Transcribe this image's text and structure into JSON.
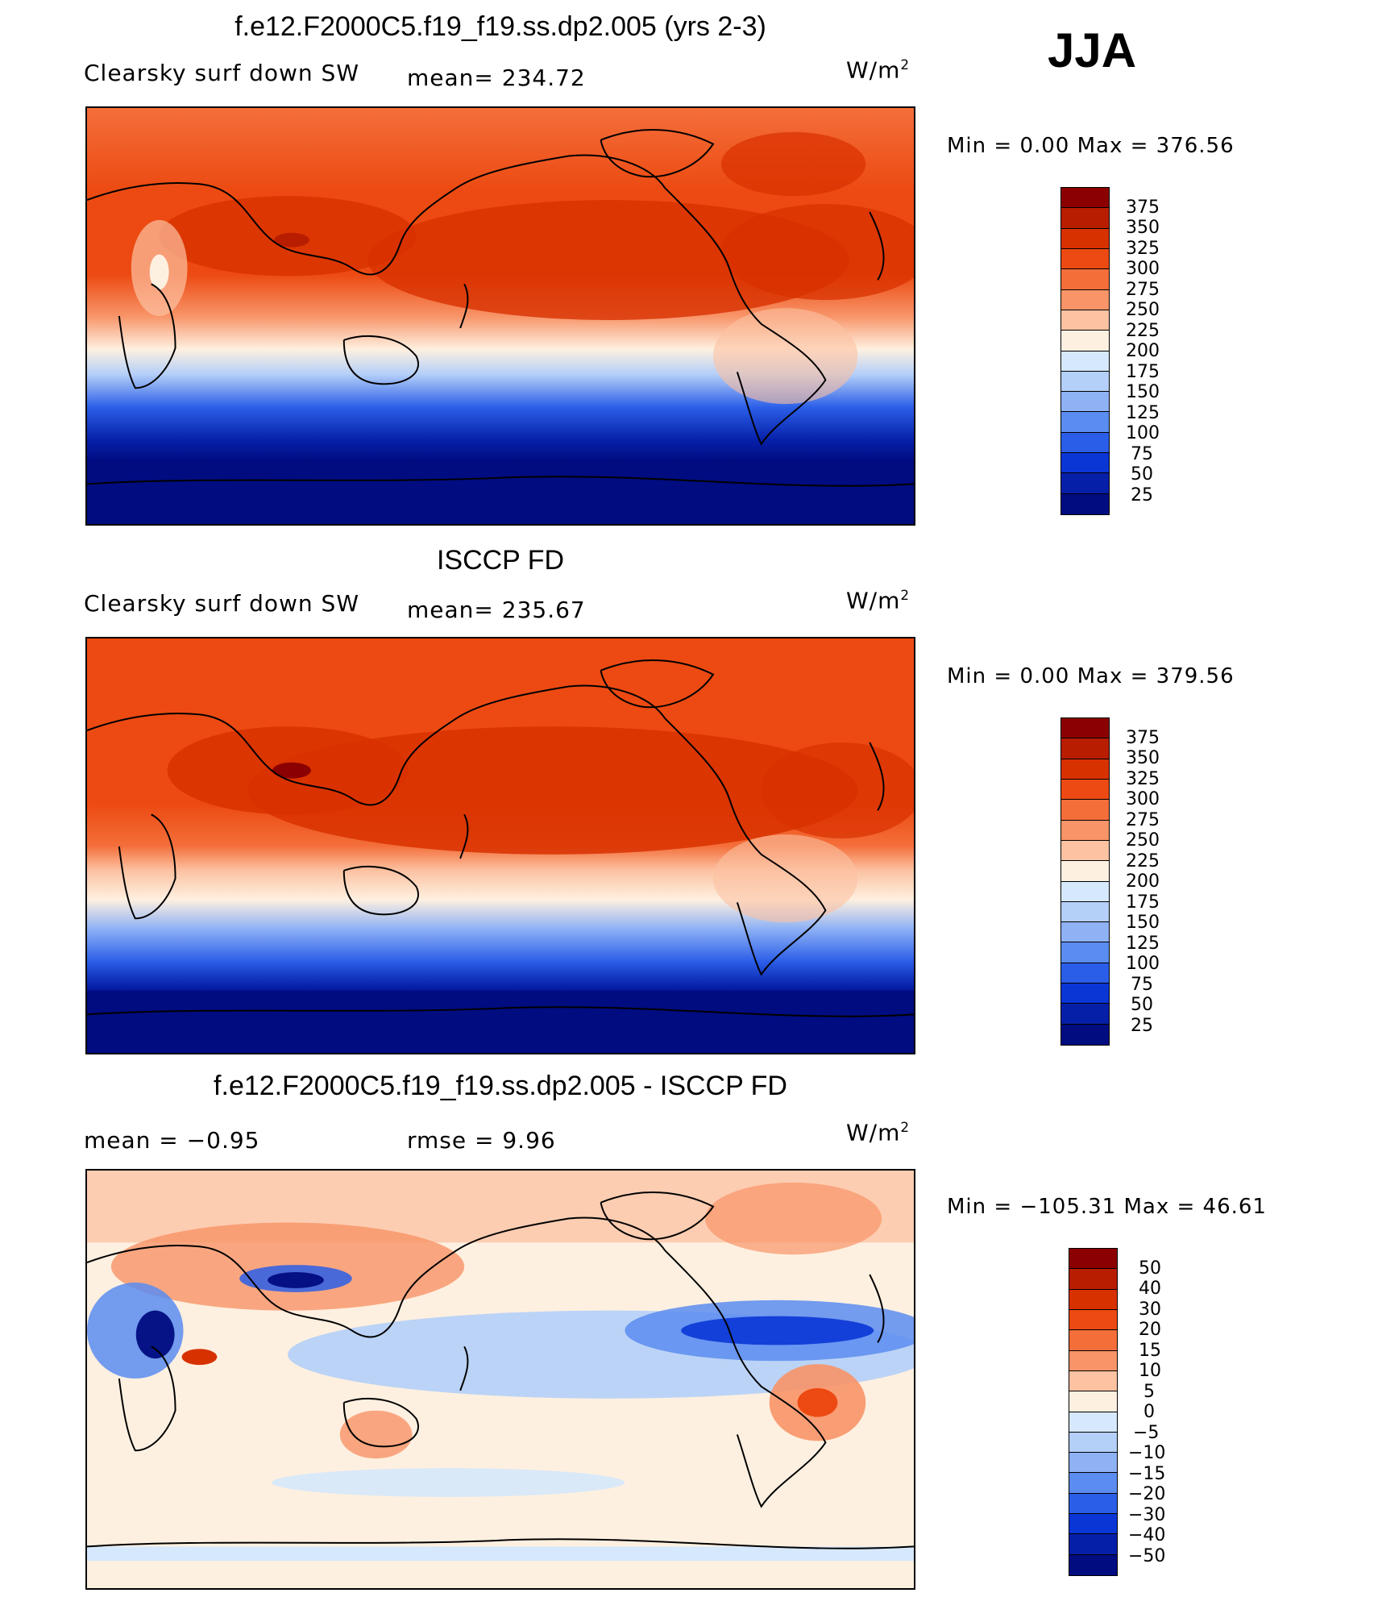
{
  "season": "JJA",
  "panels": [
    {
      "title": "f.e12.F2000C5.f19_f19.ss.dp2.005 (yrs 2-3)",
      "left_label": "Clearsky surf down SW",
      "mid_label": "mean= 234.72",
      "units": "W/m",
      "units_sup": "2",
      "minmax": "Min =     0.00 Max = 376.56",
      "ticks": [
        "375",
        "350",
        "325",
        "300",
        "275",
        "250",
        "225",
        "200",
        "175",
        "150",
        "125",
        "100",
        "75",
        "50",
        "25"
      ],
      "colors": [
        "#8b0000",
        "#b81d00",
        "#d83100",
        "#ec4a12",
        "#f46e3a",
        "#f89468",
        "#fcc2a2",
        "#fef0e0",
        "#d6e8fb",
        "#b4cff8",
        "#8fb2f5",
        "#5b8cf0",
        "#2b5ee8",
        "#0a36d6",
        "#061fa8",
        "#000c80"
      ]
    },
    {
      "title": "ISCCP FD",
      "left_label": "Clearsky surf down SW",
      "mid_label": "mean= 235.67",
      "units": "W/m",
      "units_sup": "2",
      "minmax": "Min =     0.00 Max = 379.56",
      "ticks": [
        "375",
        "350",
        "325",
        "300",
        "275",
        "250",
        "225",
        "200",
        "175",
        "150",
        "125",
        "100",
        "75",
        "50",
        "25"
      ],
      "colors": [
        "#8b0000",
        "#b81d00",
        "#d83100",
        "#ec4a12",
        "#f46e3a",
        "#f89468",
        "#fcc2a2",
        "#fef0e0",
        "#d6e8fb",
        "#b4cff8",
        "#8fb2f5",
        "#5b8cf0",
        "#2b5ee8",
        "#0a36d6",
        "#061fa8",
        "#000c80"
      ]
    },
    {
      "title": "f.e12.F2000C5.f19_f19.ss.dp2.005 - ISCCP FD",
      "left_label": "mean =   −0.95",
      "mid_label": "rmse =    9.96",
      "units": "W/m",
      "units_sup": "2",
      "minmax": "Min = −105.31 Max =   46.61",
      "ticks": [
        "50",
        "40",
        "30",
        "20",
        "15",
        "10",
        "5",
        "0",
        "−5",
        "−10",
        "−15",
        "−20",
        "−30",
        "−40",
        "−50"
      ],
      "colors": [
        "#8b0000",
        "#b81d00",
        "#d83100",
        "#ec4a12",
        "#f46e3a",
        "#f89468",
        "#fcc2a2",
        "#fef0e0",
        "#d6e8fb",
        "#b4cff8",
        "#8fb2f5",
        "#5b8cf0",
        "#2b5ee8",
        "#0a36d6",
        "#061fa8",
        "#000c80"
      ]
    }
  ]
}
